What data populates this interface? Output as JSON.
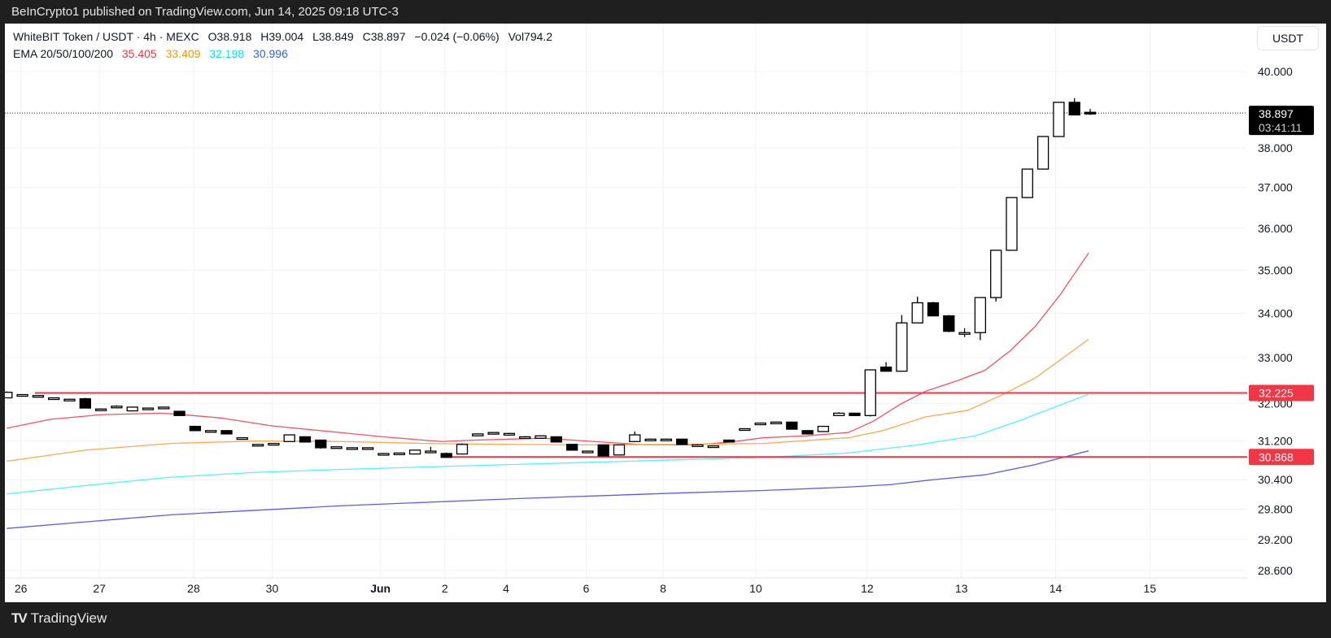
{
  "header": {
    "published": "BeInCrypto1 published on TradingView.com, Jun 14, 2025 09:18 UTC-3"
  },
  "legend": {
    "symbol": "WhiteBIT Token / USDT · 4h · MEXC",
    "open": "O38.918",
    "high": "H39.004",
    "low": "L38.849",
    "close": "C38.897",
    "change": "−0.024 (−0.06%)",
    "volume": "Vol794.2",
    "ema_label": "EMA 20/50/100/200",
    "ema_values": [
      {
        "value": "35.405",
        "color": "#f23645"
      },
      {
        "value": "33.409",
        "color": "#ff9800"
      },
      {
        "value": "32.198",
        "color": "#00e5ff"
      },
      {
        "value": "30.996",
        "color": "#2962ff"
      }
    ]
  },
  "currency_button": "USDT",
  "footer": {
    "brand": "TradingView"
  },
  "chart_data": {
    "type": "candlestick",
    "title": "WhiteBIT Token / USDT · 4h · MEXC",
    "yscale": "log",
    "ylim": [
      28.45,
      40.4
    ],
    "y_ticks": [
      "40.000",
      "38.000",
      "37.000",
      "36.000",
      "35.000",
      "34.000",
      "33.000",
      "32.000",
      "31.200",
      "30.400",
      "29.800",
      "29.200",
      "28.600"
    ],
    "x_ticks": [
      {
        "label": "26",
        "t": 0.9
      },
      {
        "label": "27",
        "t": 5.9
      },
      {
        "label": "28",
        "t": 11.9
      },
      {
        "label": "30",
        "t": 16.9
      },
      {
        "label": "Jun",
        "t": 23.8,
        "bold": true
      },
      {
        "label": "2",
        "t": 27.9
      },
      {
        "label": "4",
        "t": 31.8
      },
      {
        "label": "6",
        "t": 36.9
      },
      {
        "label": "8",
        "t": 41.8
      },
      {
        "label": "10",
        "t": 47.7
      },
      {
        "label": "12",
        "t": 54.8
      },
      {
        "label": "13",
        "t": 60.8
      },
      {
        "label": "14",
        "t": 66.8
      },
      {
        "label": "15",
        "t": 72.8
      }
    ],
    "candles_ohlc": [
      [
        32.12,
        32.26,
        32.12,
        32.24
      ],
      [
        32.19,
        32.2,
        32.18,
        32.19
      ],
      [
        32.17,
        32.18,
        32.16,
        32.17
      ],
      [
        32.12,
        32.13,
        32.11,
        32.12
      ],
      [
        32.09,
        32.1,
        32.08,
        32.09
      ],
      [
        32.1,
        32.12,
        31.9,
        31.9
      ],
      [
        31.88,
        31.89,
        31.87,
        31.88
      ],
      [
        31.94,
        31.96,
        31.93,
        31.94
      ],
      [
        31.84,
        31.93,
        31.83,
        31.92
      ],
      [
        31.9,
        31.91,
        31.89,
        31.9
      ],
      [
        31.92,
        31.93,
        31.91,
        31.92
      ],
      [
        31.83,
        31.84,
        31.74,
        31.74
      ],
      [
        31.51,
        31.52,
        31.42,
        31.42
      ],
      [
        31.42,
        31.43,
        31.41,
        31.42
      ],
      [
        31.42,
        31.43,
        31.35,
        31.35
      ],
      [
        31.27,
        31.28,
        31.26,
        31.27
      ],
      [
        31.13,
        31.14,
        31.12,
        31.13
      ],
      [
        31.15,
        31.16,
        31.14,
        31.15
      ],
      [
        31.19,
        31.34,
        31.18,
        31.33
      ],
      [
        31.29,
        31.3,
        31.18,
        31.18
      ],
      [
        31.22,
        31.23,
        31.04,
        31.06
      ],
      [
        31.08,
        31.09,
        31.07,
        31.08
      ],
      [
        31.06,
        31.07,
        31.05,
        31.06
      ],
      [
        31.06,
        31.07,
        31.05,
        31.06
      ],
      [
        30.94,
        30.95,
        30.93,
        30.94
      ],
      [
        30.95,
        30.96,
        30.94,
        30.95
      ],
      [
        30.93,
        31.02,
        30.92,
        31.01
      ],
      [
        30.99,
        31.08,
        30.97,
        30.99
      ],
      [
        30.94,
        30.96,
        30.86,
        30.86
      ],
      [
        30.93,
        31.15,
        30.92,
        31.13
      ],
      [
        31.31,
        31.36,
        31.3,
        31.35
      ],
      [
        31.38,
        31.39,
        31.37,
        31.38
      ],
      [
        31.36,
        31.37,
        31.35,
        31.36
      ],
      [
        31.29,
        31.3,
        31.28,
        31.29
      ],
      [
        31.26,
        31.32,
        31.25,
        31.31
      ],
      [
        31.29,
        31.3,
        31.18,
        31.18
      ],
      [
        31.13,
        31.14,
        31.01,
        31.01
      ],
      [
        30.99,
        31.0,
        30.98,
        30.99
      ],
      [
        31.12,
        31.13,
        30.89,
        30.89
      ],
      [
        30.91,
        31.12,
        30.9,
        31.12
      ],
      [
        31.19,
        31.4,
        31.18,
        31.33
      ],
      [
        31.24,
        31.25,
        31.23,
        31.24
      ],
      [
        31.24,
        31.25,
        31.23,
        31.24
      ],
      [
        31.24,
        31.25,
        31.13,
        31.13
      ],
      [
        31.12,
        31.13,
        31.11,
        31.12
      ],
      [
        31.1,
        31.11,
        31.09,
        31.1
      ],
      [
        31.22,
        31.23,
        31.17,
        31.18
      ],
      [
        31.46,
        31.47,
        31.45,
        31.46
      ],
      [
        31.58,
        31.59,
        31.57,
        31.58
      ],
      [
        31.6,
        31.61,
        31.59,
        31.6
      ],
      [
        31.6,
        31.61,
        31.45,
        31.45
      ],
      [
        31.42,
        31.43,
        31.35,
        31.35
      ],
      [
        31.4,
        31.52,
        31.39,
        31.51
      ],
      [
        31.74,
        31.81,
        31.73,
        31.79
      ],
      [
        31.79,
        31.8,
        31.74,
        31.74
      ],
      [
        31.74,
        32.74,
        31.72,
        32.73
      ],
      [
        32.79,
        32.9,
        32.7,
        32.7
      ],
      [
        32.7,
        33.96,
        32.69,
        33.78
      ],
      [
        33.78,
        34.38,
        33.77,
        34.24
      ],
      [
        34.24,
        34.26,
        33.94,
        33.94
      ],
      [
        33.94,
        33.96,
        33.57,
        33.59
      ],
      [
        33.56,
        33.66,
        33.46,
        33.56
      ],
      [
        33.56,
        34.36,
        33.39,
        34.36
      ],
      [
        34.36,
        35.47,
        34.27,
        35.47
      ],
      [
        35.47,
        36.75,
        35.46,
        36.75
      ],
      [
        36.75,
        37.46,
        36.74,
        37.46
      ],
      [
        37.46,
        38.29,
        37.45,
        38.29
      ],
      [
        38.29,
        39.18,
        38.28,
        39.18
      ],
      [
        39.18,
        39.29,
        38.85,
        38.85
      ],
      [
        38.918,
        39.004,
        38.849,
        38.897
      ]
    ],
    "ema_series": [
      {
        "name": "EMA 20",
        "color": "#f7525f",
        "points": [
          [
            0,
            31.47
          ],
          [
            2.8,
            31.66
          ],
          [
            6.1,
            31.76
          ],
          [
            9.8,
            31.79
          ],
          [
            10.8,
            31.77
          ],
          [
            13.6,
            31.69
          ],
          [
            16.9,
            31.52
          ],
          [
            21.2,
            31.38
          ],
          [
            23.9,
            31.29
          ],
          [
            27.7,
            31.19
          ],
          [
            29.8,
            31.22
          ],
          [
            34.2,
            31.26
          ],
          [
            37.4,
            31.19
          ],
          [
            40.7,
            31.12
          ],
          [
            43.9,
            31.12
          ],
          [
            46.1,
            31.18
          ],
          [
            48.2,
            31.27
          ],
          [
            50.9,
            31.31
          ],
          [
            53.6,
            31.38
          ],
          [
            55.2,
            31.62
          ],
          [
            56.9,
            31.98
          ],
          [
            58.5,
            32.26
          ],
          [
            60.6,
            32.5
          ],
          [
            62.3,
            32.72
          ],
          [
            63.9,
            33.15
          ],
          [
            65.5,
            33.7
          ],
          [
            67.1,
            34.43
          ],
          [
            68.9,
            35.405
          ]
        ]
      },
      {
        "name": "EMA 50",
        "color": "#ffa94d",
        "points": [
          [
            0,
            30.78
          ],
          [
            5,
            31.01
          ],
          [
            10.4,
            31.15
          ],
          [
            15.8,
            31.2
          ],
          [
            21.2,
            31.19
          ],
          [
            26.6,
            31.15
          ],
          [
            32,
            31.13
          ],
          [
            37.4,
            31.12
          ],
          [
            42.8,
            31.13
          ],
          [
            48.2,
            31.15
          ],
          [
            53.6,
            31.27
          ],
          [
            55.8,
            31.42
          ],
          [
            58.5,
            31.71
          ],
          [
            61.2,
            31.85
          ],
          [
            63.3,
            32.17
          ],
          [
            65.5,
            32.55
          ],
          [
            68.9,
            33.409
          ]
        ]
      },
      {
        "name": "EMA 100",
        "color": "#4ff5ff",
        "points": [
          [
            0,
            30.11
          ],
          [
            5,
            30.28
          ],
          [
            10.4,
            30.45
          ],
          [
            15.8,
            30.55
          ],
          [
            21.2,
            30.61
          ],
          [
            26.6,
            30.66
          ],
          [
            32,
            30.71
          ],
          [
            37.4,
            30.76
          ],
          [
            42.8,
            30.81
          ],
          [
            48.2,
            30.86
          ],
          [
            53.6,
            30.95
          ],
          [
            58,
            31.12
          ],
          [
            61.7,
            31.31
          ],
          [
            64.4,
            31.62
          ],
          [
            68.9,
            32.198
          ]
        ]
      },
      {
        "name": "EMA 200",
        "color": "#5b5cf5",
        "points": [
          [
            0,
            29.42
          ],
          [
            10.4,
            29.69
          ],
          [
            21.2,
            29.87
          ],
          [
            32,
            30.01
          ],
          [
            42.8,
            30.13
          ],
          [
            48.2,
            30.18
          ],
          [
            53.6,
            30.25
          ],
          [
            56.3,
            30.3
          ],
          [
            59,
            30.4
          ],
          [
            62.3,
            30.5
          ],
          [
            65.5,
            30.71
          ],
          [
            68.9,
            30.996
          ]
        ]
      }
    ],
    "horizontal_levels": [
      {
        "label": "32.225",
        "value": 32.225,
        "start_t": 1.8,
        "color": "#f23645"
      },
      {
        "label": "30.868",
        "value": 30.868,
        "start_t": 28,
        "color": "#f23645"
      }
    ],
    "last_price": {
      "label": "38.897",
      "value": 38.897,
      "countdown": "03:41:11"
    }
  }
}
